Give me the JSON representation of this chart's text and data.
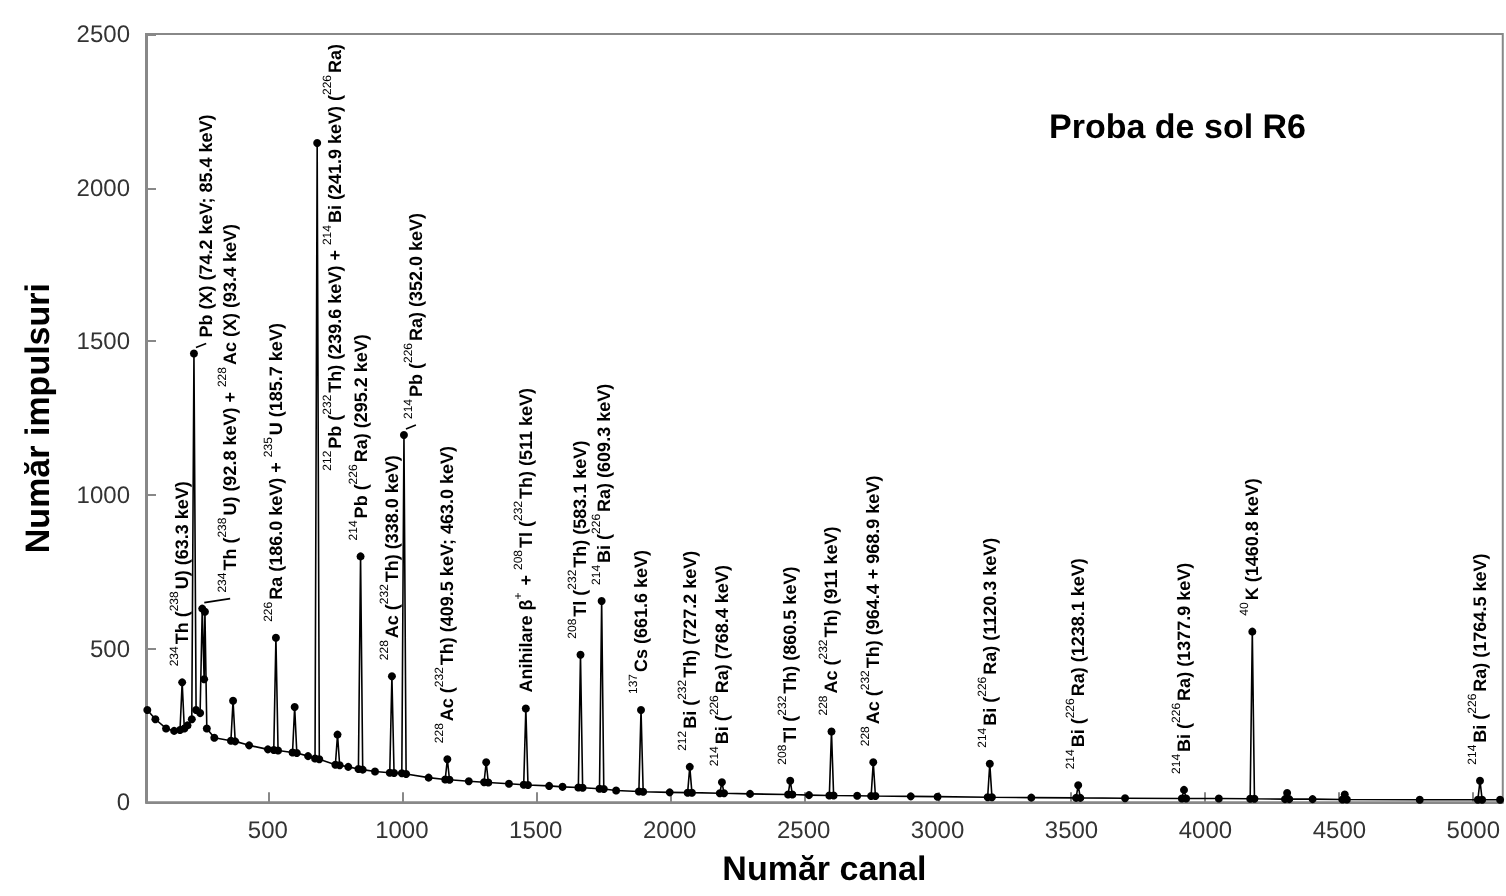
{
  "chart_data": {
    "type": "line",
    "title": "Proba de sol R6",
    "xlabel": "Număr canal",
    "ylabel": "Număr impulsuri",
    "xlim": [
      45,
      5110
    ],
    "xticks": [
      500,
      1000,
      1500,
      2000,
      2500,
      3000,
      3500,
      4000,
      4500,
      5000
    ],
    "ylim": [
      0,
      2500
    ],
    "yticks": [
      0,
      500,
      1000,
      1500,
      2000,
      2500
    ],
    "marker": "circle",
    "line_style": "solid",
    "series": [
      {
        "color": "#000000",
        "x": [
          50,
          80,
          120,
          150,
          172,
          180,
          188,
          200,
          216,
          224,
          232,
          247,
          255,
          262,
          265,
          272,
          300,
          362,
          370,
          378,
          430,
          500,
          522,
          530,
          538,
          592,
          600,
          608,
          650,
          676,
          684,
          692,
          752,
          760,
          768,
          800,
          838,
          846,
          854,
          900,
          955,
          963,
          971,
          1000,
          1008,
          1016,
          1100,
          1162,
          1170,
          1178,
          1250,
          1307,
          1315,
          1323,
          1400,
          1455,
          1463,
          1471,
          1550,
          1600,
          1659,
          1667,
          1675,
          1738,
          1746,
          1754,
          1800,
          1885,
          1893,
          1901,
          2000,
          2067,
          2075,
          2083,
          2187,
          2195,
          2203,
          2300,
          2442,
          2450,
          2458,
          2520,
          2596,
          2604,
          2612,
          2700,
          2752,
          2760,
          2768,
          2900,
          3000,
          3187,
          3195,
          3203,
          3350,
          3517,
          3525,
          3533,
          3700,
          3912,
          3920,
          3928,
          4050,
          4167,
          4175,
          4183,
          4297,
          4305,
          4313,
          4400,
          4512,
          4520,
          4528,
          4800,
          5017,
          5025,
          5033,
          5100
        ],
        "values": [
          300,
          270,
          240,
          232,
          235,
          390,
          240,
          250,
          270,
          1460,
          300,
          290,
          630,
          400,
          620,
          240,
          210,
          200,
          330,
          198,
          185,
          172,
          170,
          535,
          168,
          162,
          310,
          160,
          150,
          142,
          2145,
          140,
          122,
          220,
          120,
          115,
          108,
          800,
          106,
          100,
          96,
          410,
          95,
          94,
          1195,
          92,
          80,
          74,
          140,
          73,
          68,
          65,
          130,
          64,
          60,
          57,
          305,
          56,
          53,
          50,
          48,
          480,
          47,
          44,
          655,
          43,
          38,
          35,
          300,
          34,
          32,
          31,
          115,
          31,
          29,
          65,
          29,
          27,
          25,
          70,
          25,
          23,
          22,
          230,
          22,
          21,
          20,
          130,
          20,
          19,
          18,
          16,
          125,
          16,
          15,
          14,
          55,
          14,
          13,
          12,
          40,
          12,
          12,
          11,
          555,
          11,
          10,
          30,
          10,
          10,
          9,
          25,
          9,
          8,
          8,
          70,
          8,
          8
        ]
      }
    ],
    "annotations": [
      {
        "text": "$^{234}$Th ($^{238}$U) (63.3 keV)",
        "x": 180,
        "y": 390
      },
      {
        "text": "Pb (X) (74.2 keV; 85.4 keV)",
        "x": 224,
        "y": 1460
      },
      {
        "text": "$^{234}$Th ($^{238}$U) (92.8 keV) + $^{228}$Ac (X) (93.4 keV)",
        "x": 255,
        "y": 630
      },
      {
        "text": "$^{226}$Ra (186.0 keV) + $^{235}$U (185.7 keV)",
        "x": 530,
        "y": 535
      },
      {
        "text": "$^{212}$Pb ($^{232}$Th) (239.6 keV) + $^{214}$Bi (241.9 keV) ($^{226}$Ra)",
        "x": 684,
        "y": 2145
      },
      {
        "text": "$^{214}$Pb ($^{226}$Ra) (295.2 keV)",
        "x": 846,
        "y": 800
      },
      {
        "text": "$^{228}$Ac ($^{232}$Th) (338.0 keV)",
        "x": 963,
        "y": 410
      },
      {
        "text": "$^{214}$Pb ($^{226}$Ra) (352.0 keV)",
        "x": 1008,
        "y": 1195
      },
      {
        "text": "$^{228}$Ac ($^{232}$Th) (409.5 keV; 463.0 keV)",
        "x": 1170,
        "y": 140
      },
      {
        "text": "Anihilare β$^{+}$ + $^{208}$Tl ($^{232}$Th) (511 keV)",
        "x": 1463,
        "y": 305
      },
      {
        "text": "$^{208}$Tl ($^{232}$Th) (583.1 keV)",
        "x": 1667,
        "y": 480
      },
      {
        "text": "$^{214}$Bi ($^{226}$Ra) (609.3 keV)",
        "x": 1746,
        "y": 655
      },
      {
        "text": "$^{137}$Cs (661.6 keV)",
        "x": 1893,
        "y": 300
      },
      {
        "text": "$^{212}$Bi ($^{232}$Th) (727.2 keV)",
        "x": 2075,
        "y": 115
      },
      {
        "text": "$^{214}$Bi ($^{226}$Ra) (768.4 keV)",
        "x": 2195,
        "y": 65
      },
      {
        "text": "$^{208}$Tl ($^{232}$Th) (860.5 keV)",
        "x": 2450,
        "y": 70
      },
      {
        "text": "$^{228}$Ac ($^{232}$Th) (911 keV)",
        "x": 2604,
        "y": 230
      },
      {
        "text": "$^{228}$Ac ($^{232}$Th) (964.4 + 968.9 keV)",
        "x": 2760,
        "y": 130
      },
      {
        "text": "$^{214}$Bi ($^{226}$Ra) (1120.3 keV)",
        "x": 3195,
        "y": 125
      },
      {
        "text": "$^{214}$Bi ($^{226}$Ra) (1238.1 keV)",
        "x": 3525,
        "y": 55
      },
      {
        "text": "$^{214}$Bi ($^{226}$Ra) (1377.9 keV)",
        "x": 3920,
        "y": 40
      },
      {
        "text": "$^{40}$K (1460.8 keV)",
        "x": 4175,
        "y": 555
      },
      {
        "text": "$^{214}$Bi ($^{226}$Ra) (1764.5 keV)",
        "x": 5025,
        "y": 70
      }
    ]
  }
}
